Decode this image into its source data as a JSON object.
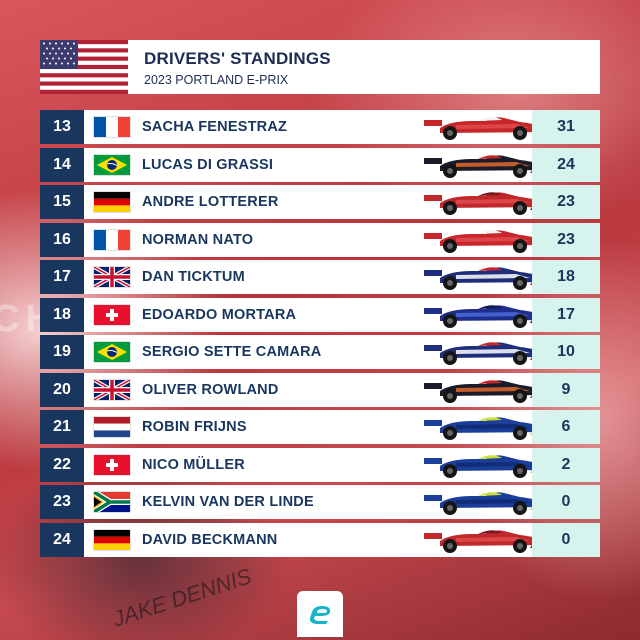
{
  "header": {
    "title": "DRIVERS' STANDINGS",
    "subtitle": "2023 PORTLAND E-PRIX",
    "flag": "usa-flag"
  },
  "background": {
    "team_text": "CH",
    "helmet_text": "JAKE DENNIS"
  },
  "colors": {
    "position_bg": "#18365e",
    "points_bg": "#d6f3ee",
    "row_bg": "#ffffff",
    "text": "#18365e"
  },
  "rows": [
    {
      "pos": "13",
      "name": "SACHA FENESTRAZ",
      "flag": "france",
      "car": "nissan",
      "pts": "31"
    },
    {
      "pos": "14",
      "name": "LUCAS DI GRASSI",
      "flag": "brazil",
      "car": "mahindra",
      "pts": "24"
    },
    {
      "pos": "15",
      "name": "ANDRE LOTTERER",
      "flag": "germany",
      "car": "porsche",
      "pts": "23"
    },
    {
      "pos": "16",
      "name": "NORMAN NATO",
      "flag": "france",
      "car": "nissan",
      "pts": "23"
    },
    {
      "pos": "17",
      "name": "DAN TICKTUM",
      "flag": "uk",
      "car": "nio",
      "pts": "18"
    },
    {
      "pos": "18",
      "name": "EDOARDO MORTARA",
      "flag": "switzerland",
      "car": "maserati",
      "pts": "17"
    },
    {
      "pos": "19",
      "name": "SERGIO SETTE CAMARA",
      "flag": "brazil",
      "car": "nio",
      "pts": "10"
    },
    {
      "pos": "20",
      "name": "OLIVER ROWLAND",
      "flag": "uk",
      "car": "mahindra",
      "pts": "9"
    },
    {
      "pos": "21",
      "name": "ROBIN FRIJNS",
      "flag": "netherlands",
      "car": "abt",
      "pts": "6"
    },
    {
      "pos": "22",
      "name": "NICO MÜLLER",
      "flag": "switzerland",
      "car": "abt",
      "pts": "2"
    },
    {
      "pos": "23",
      "name": "KELVIN VAN DER LINDE",
      "flag": "south-africa",
      "car": "abt",
      "pts": "0"
    },
    {
      "pos": "24",
      "name": "DAVID BECKMANN",
      "flag": "germany",
      "car": "porsche",
      "pts": "0"
    }
  ],
  "footer": {
    "logo": "formula-e-logo"
  }
}
